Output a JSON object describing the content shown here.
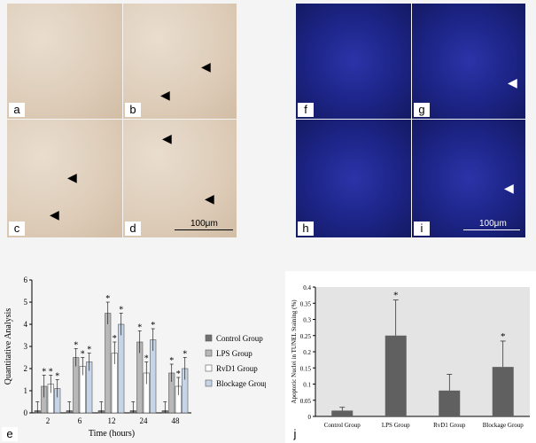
{
  "panels": [
    {
      "id": "a",
      "label": "a"
    },
    {
      "id": "b",
      "label": "b"
    },
    {
      "id": "c",
      "label": "c"
    },
    {
      "id": "d",
      "label": "d"
    },
    {
      "id": "f",
      "label": "f"
    },
    {
      "id": "g",
      "label": "g"
    },
    {
      "id": "h",
      "label": "h"
    },
    {
      "id": "i",
      "label": "i"
    },
    {
      "id": "e",
      "label": "e"
    },
    {
      "id": "j",
      "label": "j"
    }
  ],
  "scalebar": "100μm",
  "chart_data": [
    {
      "type": "bar",
      "panel": "e",
      "xlabel": "Time (hours)",
      "ylabel": "Quantitative Analysis",
      "ylim": [
        0,
        6
      ],
      "yticks": [
        "0",
        "1",
        "2",
        "3",
        "4",
        "5",
        "6"
      ],
      "categories": [
        "2",
        "6",
        "12",
        "24",
        "48"
      ],
      "series": [
        {
          "name": "Control Group",
          "values": [
            0.1,
            0.1,
            0.1,
            0.1,
            0.1
          ],
          "errors": [
            0.4,
            0.4,
            0.4,
            0.4,
            0.4
          ],
          "color": "#707070"
        },
        {
          "name": "LPS Group",
          "values": [
            1.2,
            2.5,
            4.5,
            3.2,
            1.8
          ],
          "errors": [
            0.5,
            0.4,
            0.5,
            0.5,
            0.4
          ],
          "color": "#b8b8b8"
        },
        {
          "name": "RvD1 Group",
          "values": [
            1.3,
            2.1,
            2.7,
            1.8,
            1.2
          ],
          "errors": [
            0.4,
            0.4,
            0.5,
            0.5,
            0.4
          ],
          "color": "#ffffff"
        },
        {
          "name": "Blockage Group",
          "values": [
            1.1,
            2.3,
            4.0,
            3.3,
            2.0
          ],
          "errors": [
            0.4,
            0.4,
            0.5,
            0.5,
            0.5
          ],
          "color": "#c6d4e8"
        }
      ],
      "legend_position": "right"
    },
    {
      "type": "bar",
      "panel": "j",
      "ylabel": "Apoptotic Nuclei in TUNEL Staining (%)",
      "ylim": [
        0,
        0.4
      ],
      "yticks": [
        "0",
        "0.05",
        "0.1",
        "0.15",
        "0.2",
        "0.25",
        "0.3",
        "0.35",
        "0.4"
      ],
      "categories": [
        "Control Group",
        "LPS Group",
        "RvD1 Group",
        "Blockage Group"
      ],
      "values": [
        0.018,
        0.25,
        0.08,
        0.153
      ],
      "errors": [
        0.01,
        0.11,
        0.05,
        0.08
      ],
      "annotations": [
        "",
        "*",
        "",
        "*"
      ],
      "color": "#606060"
    }
  ]
}
